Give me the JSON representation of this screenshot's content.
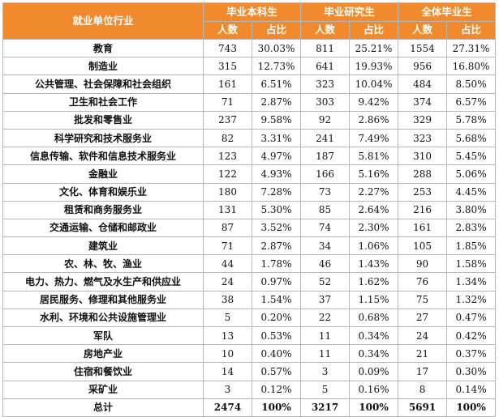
{
  "header": {
    "industry": "就业单位行业",
    "groups": [
      "毕业本科生",
      "毕业研究生",
      "全体毕业生"
    ],
    "count_label": "人数",
    "pct_label": "占比"
  },
  "rows": [
    {
      "industry": "教育",
      "ug_n": "743",
      "ug_p": "30.03%",
      "pg_n": "811",
      "pg_p": "25.21%",
      "all_n": "1554",
      "all_p": "27.31%"
    },
    {
      "industry": "制造业",
      "ug_n": "315",
      "ug_p": "12.73%",
      "pg_n": "641",
      "pg_p": "19.93%",
      "all_n": "956",
      "all_p": "16.80%"
    },
    {
      "industry": "公共管理、社会保障和社会组织",
      "ug_n": "161",
      "ug_p": "6.51%",
      "pg_n": "323",
      "pg_p": "10.04%",
      "all_n": "484",
      "all_p": "8.50%"
    },
    {
      "industry": "卫生和社会工作",
      "ug_n": "71",
      "ug_p": "2.87%",
      "pg_n": "303",
      "pg_p": "9.42%",
      "all_n": "374",
      "all_p": "6.57%"
    },
    {
      "industry": "批发和零售业",
      "ug_n": "237",
      "ug_p": "9.58%",
      "pg_n": "92",
      "pg_p": "2.86%",
      "all_n": "329",
      "all_p": "5.78%"
    },
    {
      "industry": "科学研究和技术服务业",
      "ug_n": "82",
      "ug_p": "3.31%",
      "pg_n": "241",
      "pg_p": "7.49%",
      "all_n": "323",
      "all_p": "5.68%"
    },
    {
      "industry": "信息传输、软件和信息技术服务业",
      "ug_n": "123",
      "ug_p": "4.97%",
      "pg_n": "187",
      "pg_p": "5.81%",
      "all_n": "310",
      "all_p": "5.45%"
    },
    {
      "industry": "金融业",
      "ug_n": "122",
      "ug_p": "4.93%",
      "pg_n": "166",
      "pg_p": "5.16%",
      "all_n": "288",
      "all_p": "5.06%"
    },
    {
      "industry": "文化、体育和娱乐业",
      "ug_n": "180",
      "ug_p": "7.28%",
      "pg_n": "73",
      "pg_p": "2.27%",
      "all_n": "253",
      "all_p": "4.45%"
    },
    {
      "industry": "租赁和商务服务业",
      "ug_n": "131",
      "ug_p": "5.30%",
      "pg_n": "85",
      "pg_p": "2.64%",
      "all_n": "216",
      "all_p": "3.80%"
    },
    {
      "industry": "交通运输、仓储和邮政业",
      "ug_n": "87",
      "ug_p": "3.52%",
      "pg_n": "74",
      "pg_p": "2.30%",
      "all_n": "161",
      "all_p": "2.83%"
    },
    {
      "industry": "建筑业",
      "ug_n": "71",
      "ug_p": "2.87%",
      "pg_n": "34",
      "pg_p": "1.06%",
      "all_n": "105",
      "all_p": "1.85%"
    },
    {
      "industry": "农、林、牧、渔业",
      "ug_n": "44",
      "ug_p": "1.78%",
      "pg_n": "46",
      "pg_p": "1.43%",
      "all_n": "90",
      "all_p": "1.58%"
    },
    {
      "industry": "电力、热力、燃气及水生产和供应业",
      "ug_n": "24",
      "ug_p": "0.97%",
      "pg_n": "52",
      "pg_p": "1.62%",
      "all_n": "76",
      "all_p": "1.34%"
    },
    {
      "industry": "居民服务、修理和其他服务业",
      "ug_n": "38",
      "ug_p": "1.54%",
      "pg_n": "37",
      "pg_p": "1.15%",
      "all_n": "75",
      "all_p": "1.32%"
    },
    {
      "industry": "水利、环境和公共设施管理业",
      "ug_n": "5",
      "ug_p": "0.20%",
      "pg_n": "22",
      "pg_p": "0.68%",
      "all_n": "27",
      "all_p": "0.47%"
    },
    {
      "industry": "军队",
      "ug_n": "13",
      "ug_p": "0.53%",
      "pg_n": "11",
      "pg_p": "0.34%",
      "all_n": "24",
      "all_p": "0.42%"
    },
    {
      "industry": "房地产业",
      "ug_n": "10",
      "ug_p": "0.40%",
      "pg_n": "11",
      "pg_p": "0.34%",
      "all_n": "21",
      "all_p": "0.37%"
    },
    {
      "industry": "住宿和餐饮业",
      "ug_n": "14",
      "ug_p": "0.57%",
      "pg_n": "3",
      "pg_p": "0.09%",
      "all_n": "17",
      "all_p": "0.30%"
    },
    {
      "industry": "采矿业",
      "ug_n": "3",
      "ug_p": "0.12%",
      "pg_n": "5",
      "pg_p": "0.16%",
      "all_n": "8",
      "all_p": "0.14%"
    }
  ],
  "total": {
    "industry": "总计",
    "ug_n": "2474",
    "ug_p": "100%",
    "pg_n": "3217",
    "pg_p": "100%",
    "all_n": "5691",
    "all_p": "100%"
  },
  "colors": {
    "header_bg": "#f08a2c",
    "header_text": "#ffffff",
    "border": "#b7b7b7"
  }
}
